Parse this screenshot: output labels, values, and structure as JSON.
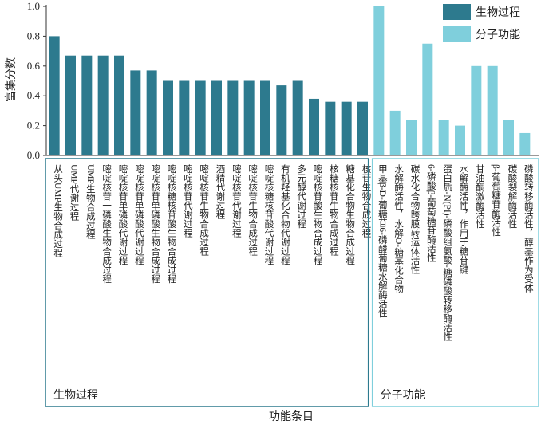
{
  "chart_data": {
    "type": "bar",
    "y_label": "富集分数",
    "x_label": "功能条目",
    "ylim": [
      0,
      1
    ],
    "yticks": [
      {
        "value": 0,
        "label": "0.0"
      },
      0.2,
      0.4,
      0.6,
      0.8,
      {
        "value": 1,
        "label": "1.0"
      }
    ],
    "legend": "top-right",
    "groups": [
      {
        "name": "生物过程",
        "color": "#2d7a8e",
        "categories": [
          "从头UMP生物合成过程",
          "UMP代谢过程",
          "UMP生物合成过程",
          "嘧啶核苷一磷酸生物合成过程",
          "嘧啶核苷单磷酸代谢过程",
          "嘧啶核苷单磷酸代谢过程",
          "嘧啶核苷单磷酸生物合成过程",
          "嘧啶核糖核苷酸生物合成过程",
          "嘧啶核苷代谢过程",
          "嘧啶核苷生物合成过程",
          "酒精代谢过程",
          "嘧啶核苷代谢过程",
          "嘧啶核苷生物合成过程",
          "嘧啶核糖核苷酸代谢过程",
          "有机羟基化合物代谢过程",
          "多元醇代谢过程",
          "嘧啶核苷酸生物合成过程",
          "核糖核苷生物合成过程",
          "糖基化合物生物合成过程",
          "核苷生物合成过程"
        ],
        "values": [
          0.8,
          0.67,
          0.67,
          0.67,
          0.67,
          0.57,
          0.57,
          0.5,
          0.5,
          0.5,
          0.5,
          0.5,
          0.5,
          0.5,
          0.47,
          0.5,
          0.38,
          0.36,
          0.36,
          0.36
        ]
      },
      {
        "name": "分子功能",
        "color": "#7fcfdc",
        "categories": [
          "甲基β-D-葡糖苷6-磷酸葡糖水解酶活性",
          "水解酶活性，水解O-糖基化合物",
          "碳水化合物跨膜转运体活性",
          "6-磷酸β-葡萄糖苷酶活性",
          "蛋白质-N(PI)-磷酸组氨酸-糖磷酸转移酶活性",
          "水解酶活性，作用于糖苷键",
          "甘油酮激酶活性",
          "β-葡萄糖苷酶活性",
          "碳酸裂解酶活性",
          "磷酸转移酶活性，醇基作为受体"
        ],
        "values": [
          1.0,
          0.3,
          0.24,
          0.75,
          0.24,
          0.2,
          0.6,
          0.6,
          0.24,
          0.15
        ]
      }
    ]
  }
}
